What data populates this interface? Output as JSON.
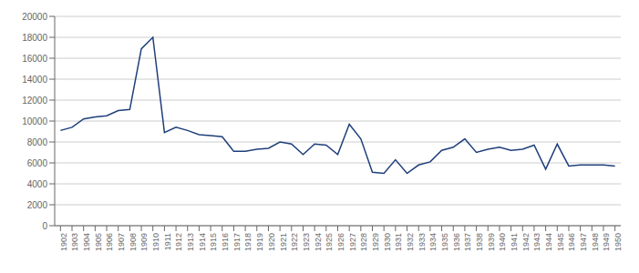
{
  "chart_data": {
    "type": "line",
    "x": [
      1902,
      1903,
      1904,
      1905,
      1906,
      1907,
      1908,
      1909,
      1910,
      1911,
      1912,
      1913,
      1914,
      1915,
      1916,
      1917,
      1918,
      1919,
      1920,
      1921,
      1922,
      1923,
      1924,
      1925,
      1926,
      1927,
      1928,
      1929,
      1930,
      1931,
      1932,
      1933,
      1934,
      1935,
      1936,
      1937,
      1938,
      1939,
      1940,
      1941,
      1942,
      1943,
      1944,
      1945,
      1946,
      1947,
      1948,
      1949,
      1950
    ],
    "values": [
      9100,
      9400,
      10200,
      10400,
      10500,
      11000,
      11100,
      16900,
      18000,
      8900,
      9400,
      9100,
      8700,
      8600,
      8500,
      7100,
      7100,
      7300,
      7400,
      8000,
      7800,
      6800,
      7800,
      7700,
      6800,
      9700,
      8300,
      5100,
      5000,
      6300,
      5000,
      5800,
      6100,
      7200,
      7500,
      8300,
      7000,
      7300,
      7500,
      7200,
      7300,
      7700,
      5400,
      7800,
      5700,
      5800,
      5800,
      5800,
      5700
    ],
    "color": "#1f3f7a",
    "xlim": [
      1901.5,
      1950.5
    ],
    "xticks": [
      1902,
      1903,
      1904,
      1905,
      1906,
      1907,
      1908,
      1909,
      1910,
      1911,
      1912,
      1913,
      1914,
      1915,
      1916,
      1917,
      1918,
      1919,
      1920,
      1921,
      1922,
      1923,
      1924,
      1925,
      1926,
      1927,
      1928,
      1929,
      1930,
      1931,
      1932,
      1933,
      1934,
      1935,
      1936,
      1937,
      1938,
      1939,
      1940,
      1941,
      1942,
      1943,
      1944,
      1945,
      1946,
      1947,
      1948,
      1949,
      1950
    ],
    "ylim": [
      0,
      20000
    ],
    "yticks": [
      0,
      2000,
      4000,
      6000,
      8000,
      10000,
      12000,
      14000,
      16000,
      18000,
      20000
    ],
    "grid": true
  }
}
